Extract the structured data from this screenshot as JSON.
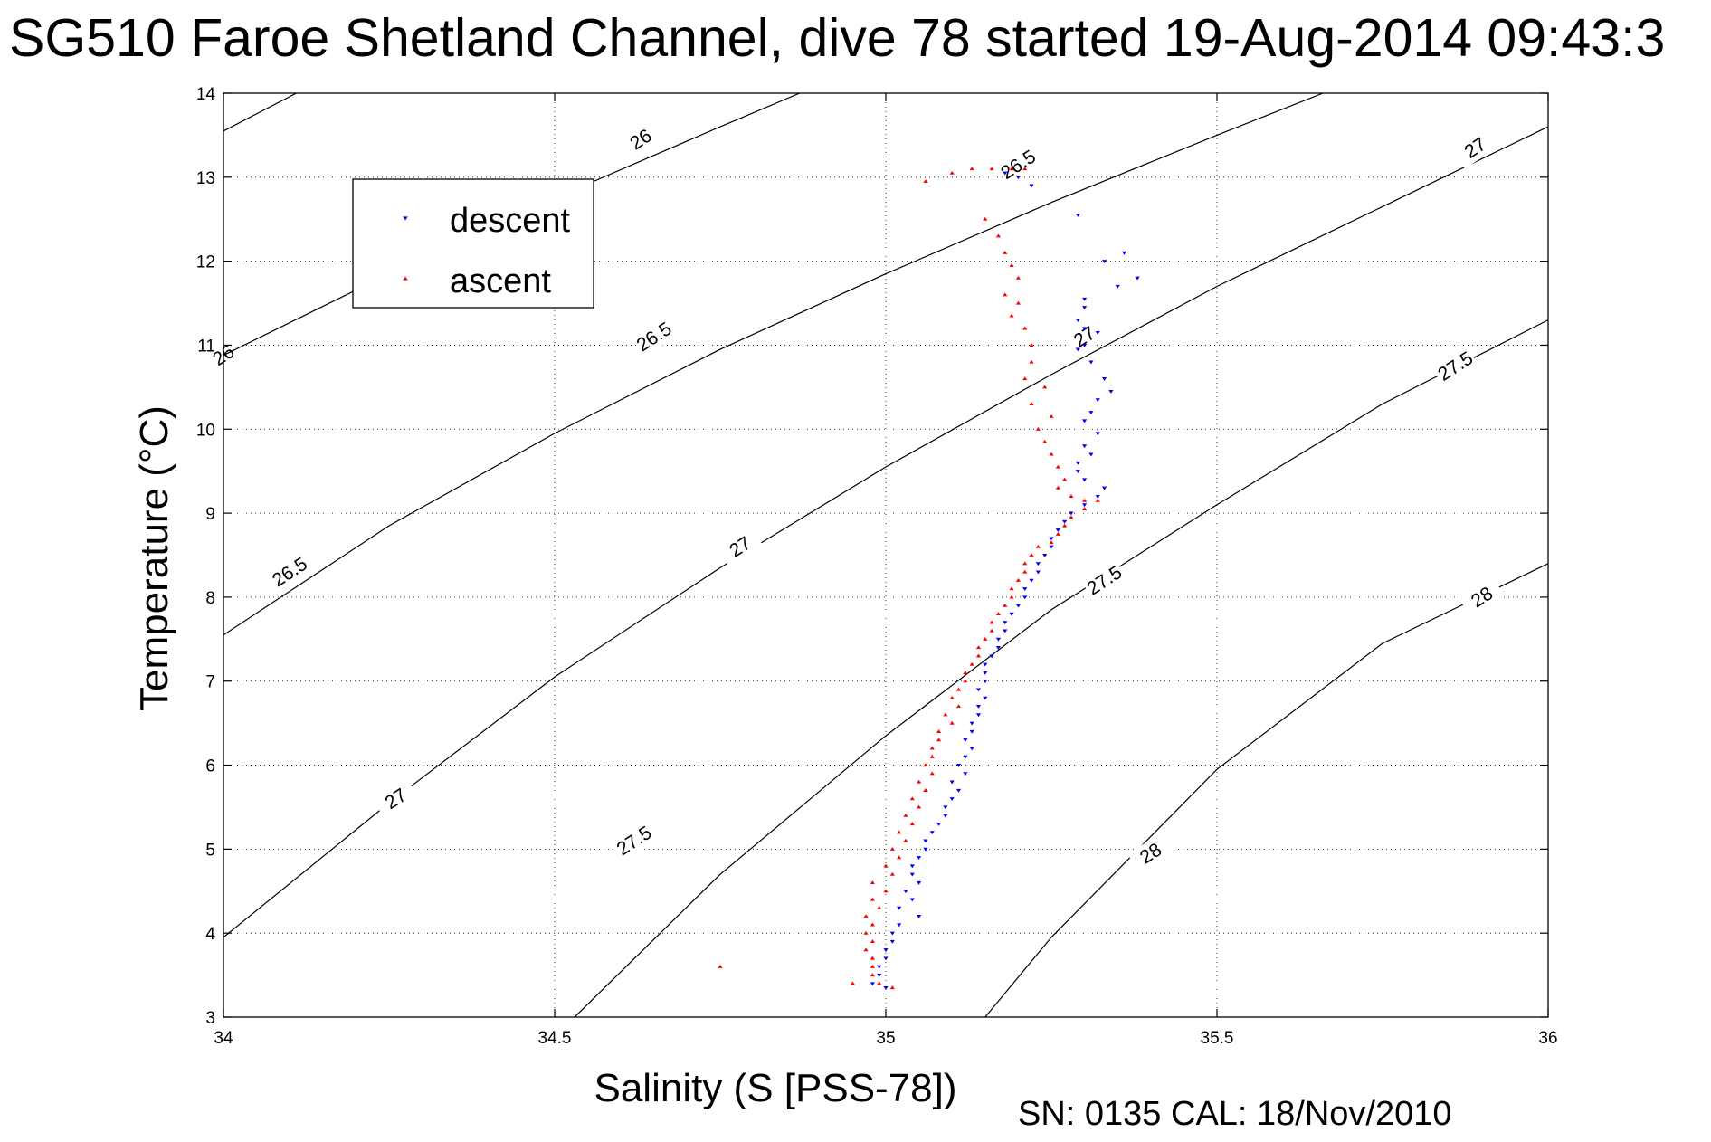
{
  "chart_data": {
    "type": "scatter",
    "title": "SG510 Faroe Shetland Channel, dive 78 started 19-Aug-2014 09:43:3",
    "xlabel": "Salinity (S [PSS-78])",
    "ylabel": "Temperature (°C)",
    "xlim": [
      34,
      36
    ],
    "ylim": [
      3,
      14
    ],
    "xticks": [
      "34",
      "34.5",
      "35",
      "35.5",
      "36"
    ],
    "yticks": [
      "3",
      "4",
      "5",
      "6",
      "7",
      "8",
      "9",
      "10",
      "11",
      "12",
      "13",
      "14"
    ],
    "grid": true,
    "legend_position": "top-left",
    "footer": "SN: 0135  CAL: 18/Nov/2010",
    "density_contours": [
      {
        "label": "26",
        "points": [
          [
            34.0,
            13.55
          ],
          [
            34.11,
            14.0
          ]
        ],
        "labels_at": [
          [
            34.0,
            10.88
          ]
        ]
      },
      {
        "label": "26",
        "points": [
          [
            34.0,
            10.88
          ],
          [
            34.25,
            11.85
          ],
          [
            34.5,
            12.75
          ],
          [
            34.75,
            13.6
          ],
          [
            34.87,
            14.0
          ]
        ],
        "labels_at": [
          [
            34.63,
            13.45
          ]
        ]
      },
      {
        "label": "26.5",
        "points": [
          [
            34.0,
            7.55
          ],
          [
            34.25,
            8.85
          ],
          [
            34.5,
            9.95
          ],
          [
            34.75,
            10.95
          ],
          [
            35.0,
            11.85
          ],
          [
            35.25,
            12.7
          ],
          [
            35.5,
            13.5
          ],
          [
            35.66,
            14.0
          ]
        ],
        "labels_at": [
          [
            34.1,
            8.3
          ],
          [
            34.65,
            11.1
          ],
          [
            35.2,
            13.15
          ]
        ]
      },
      {
        "label": "27",
        "points": [
          [
            34.0,
            3.95
          ],
          [
            34.25,
            5.55
          ],
          [
            34.5,
            7.05
          ],
          [
            34.75,
            8.35
          ],
          [
            35.0,
            9.55
          ],
          [
            35.25,
            10.65
          ],
          [
            35.5,
            11.7
          ],
          [
            35.75,
            12.65
          ],
          [
            36.0,
            13.6
          ]
        ],
        "labels_at": [
          [
            34.26,
            5.6
          ],
          [
            34.78,
            8.6
          ],
          [
            35.3,
            11.1
          ],
          [
            35.89,
            13.35
          ]
        ]
      },
      {
        "label": "27.5",
        "points": [
          [
            34.53,
            3.0
          ],
          [
            34.75,
            4.7
          ],
          [
            35.0,
            6.35
          ],
          [
            35.25,
            7.85
          ],
          [
            35.5,
            9.1
          ],
          [
            35.75,
            10.3
          ],
          [
            36.0,
            11.3
          ]
        ],
        "labels_at": [
          [
            34.62,
            5.1
          ],
          [
            35.33,
            8.2
          ],
          [
            35.86,
            10.75
          ]
        ]
      },
      {
        "label": "28",
        "points": [
          [
            35.15,
            3.0
          ],
          [
            35.25,
            3.95
          ],
          [
            35.5,
            5.95
          ],
          [
            35.75,
            7.45
          ],
          [
            36.0,
            8.4
          ]
        ],
        "labels_at": [
          [
            35.4,
            4.95
          ],
          [
            35.9,
            8.0
          ]
        ]
      }
    ],
    "series": [
      {
        "name": "descent",
        "color": "#0000ff",
        "marker": "triangle-down",
        "points": [
          [
            35.18,
            13.05
          ],
          [
            35.2,
            13.0
          ],
          [
            35.22,
            12.9
          ],
          [
            35.29,
            12.55
          ],
          [
            35.36,
            12.1
          ],
          [
            35.33,
            12.0
          ],
          [
            35.38,
            11.8
          ],
          [
            35.35,
            11.7
          ],
          [
            35.3,
            11.55
          ],
          [
            35.3,
            11.45
          ],
          [
            35.29,
            11.3
          ],
          [
            35.3,
            11.2
          ],
          [
            35.32,
            11.15
          ],
          [
            35.3,
            11.0
          ],
          [
            35.29,
            10.95
          ],
          [
            35.31,
            10.8
          ],
          [
            35.33,
            10.6
          ],
          [
            35.34,
            10.45
          ],
          [
            35.32,
            10.35
          ],
          [
            35.31,
            10.2
          ],
          [
            35.3,
            10.1
          ],
          [
            35.32,
            9.95
          ],
          [
            35.3,
            9.8
          ],
          [
            35.31,
            9.7
          ],
          [
            35.29,
            9.6
          ],
          [
            35.29,
            9.5
          ],
          [
            35.3,
            9.4
          ],
          [
            35.33,
            9.3
          ],
          [
            35.32,
            9.2
          ],
          [
            35.3,
            9.1
          ],
          [
            35.28,
            9.0
          ],
          [
            35.27,
            8.9
          ],
          [
            35.26,
            8.8
          ],
          [
            35.25,
            8.7
          ],
          [
            35.25,
            8.6
          ],
          [
            35.24,
            8.5
          ],
          [
            35.23,
            8.4
          ],
          [
            35.23,
            8.3
          ],
          [
            35.22,
            8.2
          ],
          [
            35.21,
            8.1
          ],
          [
            35.21,
            8.0
          ],
          [
            35.2,
            7.9
          ],
          [
            35.19,
            7.8
          ],
          [
            35.18,
            7.7
          ],
          [
            35.18,
            7.6
          ],
          [
            35.17,
            7.5
          ],
          [
            35.17,
            7.4
          ],
          [
            35.16,
            7.3
          ],
          [
            35.15,
            7.2
          ],
          [
            35.15,
            7.1
          ],
          [
            35.15,
            7.0
          ],
          [
            35.14,
            6.9
          ],
          [
            35.15,
            6.8
          ],
          [
            35.14,
            6.7
          ],
          [
            35.14,
            6.6
          ],
          [
            35.13,
            6.5
          ],
          [
            35.13,
            6.4
          ],
          [
            35.12,
            6.3
          ],
          [
            35.13,
            6.2
          ],
          [
            35.12,
            6.1
          ],
          [
            35.11,
            6.0
          ],
          [
            35.12,
            5.9
          ],
          [
            35.1,
            5.8
          ],
          [
            35.11,
            5.7
          ],
          [
            35.1,
            5.6
          ],
          [
            35.09,
            5.5
          ],
          [
            35.09,
            5.4
          ],
          [
            35.08,
            5.3
          ],
          [
            35.07,
            5.2
          ],
          [
            35.06,
            5.1
          ],
          [
            35.06,
            5.0
          ],
          [
            35.05,
            4.9
          ],
          [
            35.04,
            4.8
          ],
          [
            35.04,
            4.7
          ],
          [
            35.05,
            4.6
          ],
          [
            35.03,
            4.5
          ],
          [
            35.04,
            4.4
          ],
          [
            35.02,
            4.3
          ],
          [
            35.05,
            4.2
          ],
          [
            35.02,
            4.1
          ],
          [
            35.01,
            4.0
          ],
          [
            35.01,
            3.9
          ],
          [
            35.0,
            3.8
          ],
          [
            35.0,
            3.7
          ],
          [
            34.99,
            3.6
          ],
          [
            34.99,
            3.5
          ],
          [
            34.98,
            3.4
          ],
          [
            35.0,
            3.35
          ]
        ]
      },
      {
        "name": "ascent",
        "color": "#ff0000",
        "marker": "triangle-up",
        "points": [
          [
            35.06,
            12.95
          ],
          [
            35.1,
            13.05
          ],
          [
            35.13,
            13.1
          ],
          [
            35.16,
            13.1
          ],
          [
            35.19,
            13.1
          ],
          [
            35.21,
            13.1
          ],
          [
            35.15,
            12.5
          ],
          [
            35.17,
            12.3
          ],
          [
            35.18,
            12.1
          ],
          [
            35.19,
            11.95
          ],
          [
            35.2,
            11.8
          ],
          [
            35.18,
            11.6
          ],
          [
            35.2,
            11.5
          ],
          [
            35.19,
            11.35
          ],
          [
            35.21,
            11.2
          ],
          [
            35.22,
            11.0
          ],
          [
            35.22,
            10.8
          ],
          [
            35.21,
            10.6
          ],
          [
            35.24,
            10.5
          ],
          [
            35.22,
            10.3
          ],
          [
            35.25,
            10.15
          ],
          [
            35.23,
            10.0
          ],
          [
            35.24,
            9.85
          ],
          [
            35.25,
            9.7
          ],
          [
            35.26,
            9.55
          ],
          [
            35.27,
            9.4
          ],
          [
            35.26,
            9.3
          ],
          [
            35.28,
            9.2
          ],
          [
            35.3,
            9.15
          ],
          [
            35.32,
            9.15
          ],
          [
            35.3,
            9.05
          ],
          [
            35.28,
            8.95
          ],
          [
            35.27,
            8.85
          ],
          [
            35.26,
            8.75
          ],
          [
            35.25,
            8.65
          ],
          [
            35.23,
            8.6
          ],
          [
            35.22,
            8.5
          ],
          [
            35.21,
            8.4
          ],
          [
            35.21,
            8.3
          ],
          [
            35.2,
            8.2
          ],
          [
            35.19,
            8.1
          ],
          [
            35.19,
            8.0
          ],
          [
            35.18,
            7.9
          ],
          [
            35.17,
            7.8
          ],
          [
            35.16,
            7.7
          ],
          [
            35.16,
            7.6
          ],
          [
            35.15,
            7.5
          ],
          [
            35.14,
            7.4
          ],
          [
            35.14,
            7.3
          ],
          [
            35.13,
            7.2
          ],
          [
            35.12,
            7.1
          ],
          [
            35.12,
            7.0
          ],
          [
            35.11,
            6.9
          ],
          [
            35.1,
            6.8
          ],
          [
            35.11,
            6.7
          ],
          [
            35.09,
            6.6
          ],
          [
            35.1,
            6.5
          ],
          [
            35.08,
            6.4
          ],
          [
            35.08,
            6.3
          ],
          [
            35.07,
            6.2
          ],
          [
            35.07,
            6.1
          ],
          [
            35.06,
            6.0
          ],
          [
            35.07,
            5.9
          ],
          [
            35.05,
            5.8
          ],
          [
            35.06,
            5.7
          ],
          [
            35.04,
            5.6
          ],
          [
            35.05,
            5.5
          ],
          [
            35.03,
            5.4
          ],
          [
            35.04,
            5.3
          ],
          [
            35.02,
            5.2
          ],
          [
            35.03,
            5.1
          ],
          [
            35.01,
            5.0
          ],
          [
            35.02,
            4.9
          ],
          [
            35.0,
            4.8
          ],
          [
            35.01,
            4.7
          ],
          [
            34.98,
            4.6
          ],
          [
            35.0,
            4.5
          ],
          [
            34.98,
            4.4
          ],
          [
            34.99,
            4.3
          ],
          [
            34.97,
            4.2
          ],
          [
            34.98,
            4.1
          ],
          [
            34.97,
            4.0
          ],
          [
            34.98,
            3.9
          ],
          [
            34.97,
            3.8
          ],
          [
            34.98,
            3.7
          ],
          [
            34.98,
            3.6
          ],
          [
            34.98,
            3.5
          ],
          [
            34.99,
            3.4
          ],
          [
            35.01,
            3.35
          ],
          [
            34.95,
            3.4
          ],
          [
            34.75,
            3.6
          ]
        ]
      }
    ]
  }
}
